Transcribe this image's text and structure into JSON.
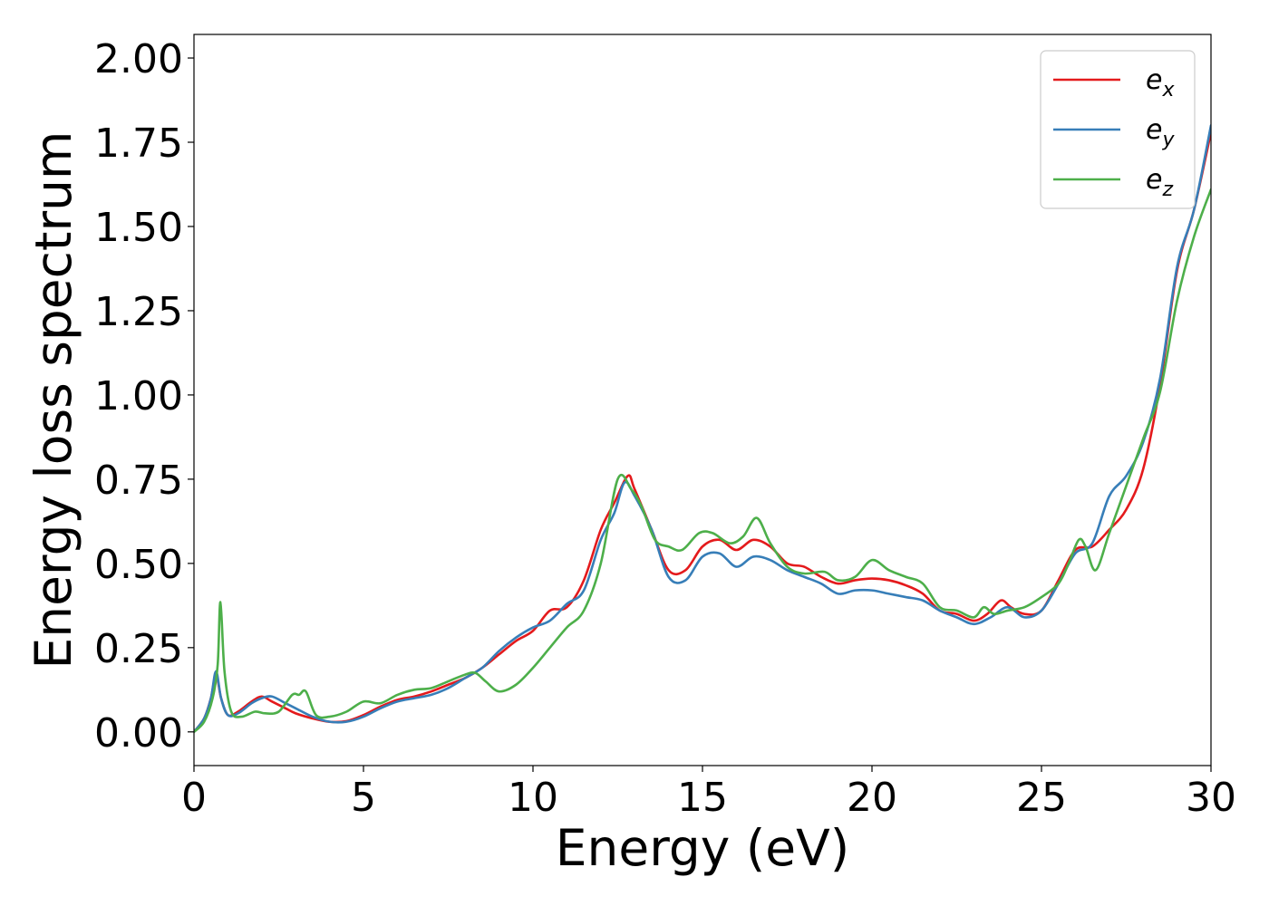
{
  "chart_data": {
    "type": "line",
    "title": "",
    "xlabel": "Energy (eV)",
    "ylabel": "Energy loss spectrum",
    "xlim": [
      0,
      30
    ],
    "ylim": [
      -0.1,
      2.07
    ],
    "xticks": [
      0,
      5,
      10,
      15,
      20,
      25,
      30
    ],
    "xtick_labels": [
      "0",
      "5",
      "10",
      "15",
      "20",
      "25",
      "30"
    ],
    "yticks": [
      0,
      0.25,
      0.5,
      0.75,
      1.0,
      1.25,
      1.5,
      1.75,
      2.0
    ],
    "ytick_labels": [
      "0.00",
      "0.25",
      "0.50",
      "0.75",
      "1.00",
      "1.25",
      "1.50",
      "1.75",
      "2.00"
    ],
    "grid": false,
    "legend_position": "top-right",
    "series": [
      {
        "name": "e_x",
        "legend_base": "e",
        "legend_sub": "x",
        "color": "#e41a1c",
        "x": [
          0,
          0.3,
          0.5,
          0.65,
          0.8,
          1.0,
          1.3,
          1.7,
          2.0,
          2.3,
          2.7,
          3.0,
          3.5,
          4.0,
          4.5,
          5.0,
          5.5,
          6.0,
          6.5,
          7.0,
          7.5,
          8.0,
          8.5,
          9.0,
          9.5,
          10.0,
          10.5,
          11.0,
          11.5,
          12.0,
          12.4,
          12.8,
          13.0,
          13.5,
          14.0,
          14.5,
          15.0,
          15.5,
          16.0,
          16.5,
          17.0,
          17.5,
          18.0,
          18.5,
          19.0,
          19.5,
          20.0,
          20.5,
          21.0,
          21.5,
          22.0,
          22.5,
          23.0,
          23.4,
          23.8,
          24.1,
          24.5,
          25.0,
          25.5,
          26.0,
          26.5,
          27.0,
          27.5,
          28.0,
          28.5,
          29.0,
          29.5,
          30.0
        ],
        "y": [
          0.0,
          0.04,
          0.1,
          0.17,
          0.1,
          0.05,
          0.06,
          0.09,
          0.105,
          0.09,
          0.07,
          0.055,
          0.04,
          0.03,
          0.032,
          0.05,
          0.075,
          0.095,
          0.105,
          0.12,
          0.14,
          0.16,
          0.19,
          0.23,
          0.27,
          0.3,
          0.36,
          0.37,
          0.45,
          0.6,
          0.68,
          0.76,
          0.72,
          0.6,
          0.48,
          0.48,
          0.55,
          0.57,
          0.54,
          0.57,
          0.55,
          0.5,
          0.49,
          0.46,
          0.44,
          0.45,
          0.455,
          0.45,
          0.435,
          0.41,
          0.36,
          0.35,
          0.33,
          0.35,
          0.39,
          0.37,
          0.35,
          0.36,
          0.45,
          0.54,
          0.55,
          0.6,
          0.66,
          0.78,
          1.03,
          1.37,
          1.55,
          1.78
        ]
      },
      {
        "name": "e_y",
        "legend_base": "e",
        "legend_sub": "y",
        "color": "#377eb8",
        "x": [
          0,
          0.3,
          0.5,
          0.65,
          0.8,
          1.0,
          1.3,
          1.7,
          2.0,
          2.3,
          2.7,
          3.0,
          3.5,
          4.0,
          4.5,
          5.0,
          5.5,
          6.0,
          6.5,
          7.0,
          7.5,
          8.0,
          8.5,
          9.0,
          9.5,
          10.0,
          10.5,
          11.0,
          11.5,
          12.0,
          12.4,
          12.7,
          13.0,
          13.5,
          14.0,
          14.5,
          15.0,
          15.5,
          16.0,
          16.5,
          17.0,
          17.5,
          18.0,
          18.5,
          19.0,
          19.5,
          20.0,
          20.5,
          21.0,
          21.5,
          22.0,
          22.5,
          23.0,
          23.5,
          24.0,
          24.5,
          25.0,
          25.5,
          26.0,
          26.5,
          27.0,
          27.5,
          28.0,
          28.5,
          29.0,
          29.5,
          30.0
        ],
        "y": [
          0.0,
          0.04,
          0.1,
          0.18,
          0.1,
          0.05,
          0.055,
          0.085,
          0.1,
          0.105,
          0.085,
          0.07,
          0.045,
          0.03,
          0.03,
          0.045,
          0.07,
          0.09,
          0.1,
          0.11,
          0.13,
          0.16,
          0.19,
          0.24,
          0.28,
          0.31,
          0.33,
          0.38,
          0.42,
          0.57,
          0.65,
          0.74,
          0.7,
          0.6,
          0.46,
          0.45,
          0.52,
          0.53,
          0.49,
          0.52,
          0.51,
          0.48,
          0.46,
          0.44,
          0.41,
          0.42,
          0.42,
          0.41,
          0.4,
          0.39,
          0.36,
          0.34,
          0.32,
          0.34,
          0.37,
          0.34,
          0.36,
          0.44,
          0.53,
          0.56,
          0.7,
          0.76,
          0.86,
          1.05,
          1.38,
          1.55,
          1.8
        ]
      },
      {
        "name": "e_z",
        "legend_base": "e",
        "legend_sub": "z",
        "color": "#4daf4a",
        "x": [
          0,
          0.3,
          0.55,
          0.7,
          0.78,
          0.9,
          1.1,
          1.4,
          1.8,
          2.1,
          2.5,
          2.9,
          3.1,
          3.3,
          3.6,
          4.0,
          4.5,
          5.0,
          5.5,
          6.0,
          6.5,
          7.0,
          7.5,
          8.0,
          8.3,
          8.6,
          9.0,
          9.5,
          10.0,
          10.5,
          11.0,
          11.5,
          12.0,
          12.5,
          12.9,
          13.2,
          13.6,
          14.0,
          14.4,
          14.9,
          15.3,
          15.8,
          16.2,
          16.6,
          17.0,
          17.5,
          18.0,
          18.6,
          19.0,
          19.5,
          20.0,
          20.5,
          21.0,
          21.5,
          22.0,
          22.5,
          23.0,
          23.3,
          23.6,
          24.0,
          24.5,
          25.0,
          25.5,
          25.8,
          26.1,
          26.3,
          26.6,
          27.0,
          27.5,
          28.0,
          28.5,
          29.0,
          29.5,
          30.0
        ],
        "y": [
          0.0,
          0.03,
          0.1,
          0.2,
          0.385,
          0.18,
          0.06,
          0.045,
          0.06,
          0.055,
          0.06,
          0.11,
          0.11,
          0.12,
          0.05,
          0.045,
          0.06,
          0.09,
          0.085,
          0.11,
          0.125,
          0.13,
          0.15,
          0.17,
          0.175,
          0.15,
          0.12,
          0.14,
          0.19,
          0.25,
          0.31,
          0.36,
          0.5,
          0.75,
          0.72,
          0.67,
          0.57,
          0.55,
          0.54,
          0.59,
          0.59,
          0.56,
          0.58,
          0.635,
          0.56,
          0.49,
          0.47,
          0.475,
          0.45,
          0.46,
          0.51,
          0.48,
          0.46,
          0.44,
          0.37,
          0.36,
          0.34,
          0.37,
          0.35,
          0.36,
          0.37,
          0.4,
          0.44,
          0.5,
          0.57,
          0.55,
          0.48,
          0.59,
          0.73,
          0.87,
          1.01,
          1.28,
          1.47,
          1.61
        ]
      }
    ]
  }
}
